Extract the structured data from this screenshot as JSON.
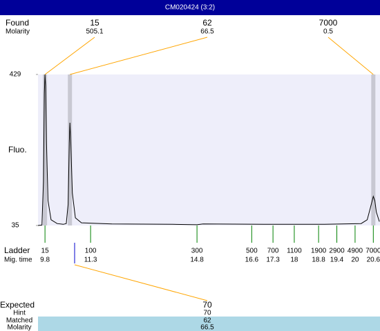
{
  "chart_data": {
    "type": "line",
    "title": "CM020424 (3:2)",
    "ylabel": "Fluo.",
    "ylim": [
      35,
      429
    ],
    "yticks": [
      35,
      429
    ],
    "xlim": [
      9.57,
      20.82
    ],
    "plot_color": "#eeeefa",
    "series": [
      {
        "color": "#000000",
        "x": [
          9.57,
          9.7,
          9.75,
          9.78,
          9.8,
          9.82,
          9.85,
          9.9,
          10.0,
          10.2,
          10.4,
          10.5,
          10.56,
          10.6,
          10.62,
          10.65,
          10.7,
          10.8,
          11.0,
          12,
          14,
          14.8,
          15,
          17,
          19,
          20.2,
          20.4,
          20.5,
          20.6,
          20.65,
          20.7,
          20.8
        ],
        "values": [
          35,
          36,
          150,
          380,
          429,
          400,
          250,
          100,
          50,
          40,
          38,
          40,
          90,
          250,
          303,
          250,
          120,
          55,
          42,
          39,
          38,
          37,
          39,
          38,
          38,
          40,
          50,
          80,
          111,
          100,
          70,
          45
        ]
      }
    ],
    "found": {
      "label": "Found",
      "molarity_label": "Molarity",
      "peaks": [
        {
          "size": 15,
          "molarity": 505.1,
          "time": 9.8
        },
        {
          "size": 62,
          "molarity": 66.5,
          "time": 10.62
        },
        {
          "size": 7000,
          "molarity": 0.5,
          "time": 20.6
        }
      ]
    },
    "ladder": {
      "label": "Ladder",
      "time_label": "Mig. time",
      "sizes": [
        15,
        100,
        300,
        500,
        700,
        1100,
        1900,
        2900,
        4900,
        7000
      ],
      "times": [
        9.8,
        11.3,
        14.8,
        16.6,
        17.3,
        18,
        18.8,
        19.4,
        20,
        20.6
      ]
    },
    "expected": {
      "label": "Expected",
      "value": 70,
      "hint_label": "Hint",
      "hint": 70,
      "matched_label": "Matched",
      "matched": 62,
      "molarity_label": "Molarity",
      "molarity": 66.5
    }
  }
}
